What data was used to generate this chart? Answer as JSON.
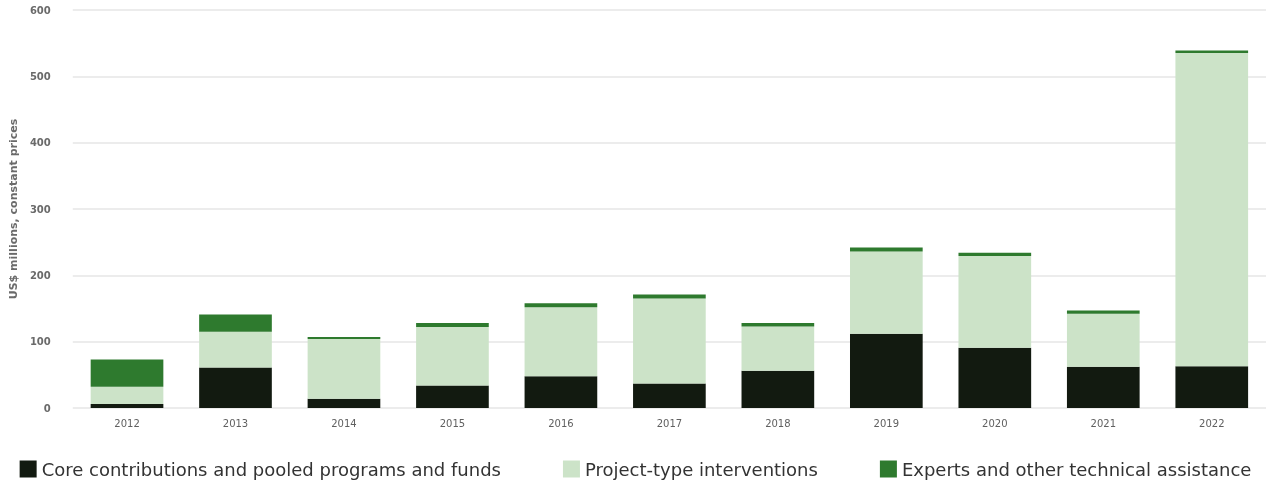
{
  "chart_data": {
    "type": "bar",
    "stacked": true,
    "ylabel": "US$ millions, constant prices",
    "categories": [
      "2012",
      "2013",
      "2014",
      "2015",
      "2016",
      "2017",
      "2018",
      "2019",
      "2020",
      "2021",
      "2022"
    ],
    "series": [
      {
        "name": "Core contributions and pooled programs and funds",
        "color": "#121a10",
        "values": [
          6,
          61,
          14,
          34,
          48,
          37,
          56,
          112,
          91,
          62,
          63
        ]
      },
      {
        "name": "Project-type interventions",
        "color": "#cce3c8",
        "values": [
          26,
          54,
          90,
          88,
          104,
          128,
          67,
          124,
          138,
          80,
          472
        ]
      },
      {
        "name": "Experts and other technical assistance",
        "color": "#2e7a2e",
        "values": [
          41,
          26,
          3,
          6,
          6,
          6,
          5,
          6,
          5,
          5,
          4
        ]
      }
    ],
    "ylim": [
      0,
      600
    ],
    "yticks": [
      0,
      100,
      200,
      300,
      400,
      500,
      600
    ],
    "grid": "y",
    "legend": "bottom"
  }
}
